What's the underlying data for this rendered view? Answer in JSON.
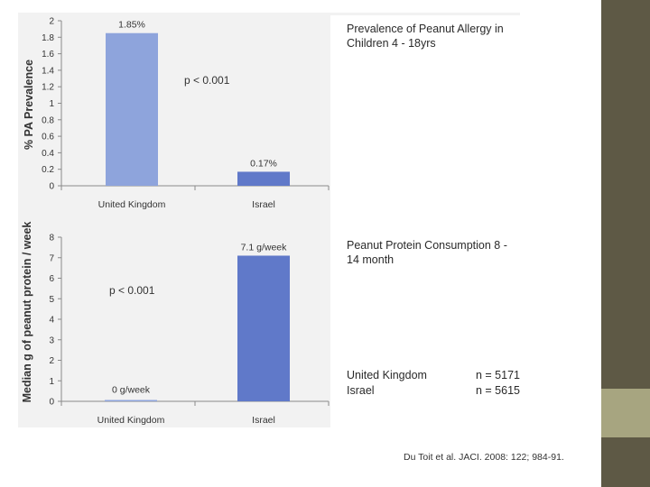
{
  "chart_data": [
    {
      "type": "bar",
      "categories": [
        "United Kingdom",
        "Israel"
      ],
      "values": [
        1.85,
        0.17
      ],
      "data_labels": [
        "1.85%",
        "0.17%"
      ],
      "ylabel": "% PA Prevalence",
      "yticks": [
        "0",
        "0.2",
        "0.4",
        "0.6",
        "0.8",
        "1",
        "1.2",
        "1.4",
        "1.6",
        "1.8",
        "2"
      ],
      "ylim": [
        0,
        2
      ],
      "annotation": "p < 0.001",
      "colors": [
        "#8ea4dc",
        "#6079c9"
      ]
    },
    {
      "type": "bar",
      "categories": [
        "United Kingdom",
        "Israel"
      ],
      "values": [
        0,
        7.1
      ],
      "data_labels": [
        "0 g/week",
        "7.1 g/week"
      ],
      "ylabel": "Median g of peanut protein / week",
      "yticks": [
        "0",
        "1",
        "2",
        "3",
        "4",
        "5",
        "6",
        "7",
        "8"
      ],
      "ylim": [
        0,
        8
      ],
      "annotation": "p < 0.001",
      "colors": [
        "#8ea4dc",
        "#6079c9"
      ]
    }
  ],
  "captions": {
    "top": "Prevalence of Peanut Allergy in Children  4 - 18yrs",
    "bottom": "Peanut Protein Consumption  8 - 14 month"
  },
  "legend": [
    {
      "label": "United Kingdom",
      "n": "n = 5171"
    },
    {
      "label": "Israel",
      "n": "n = 5615"
    }
  ],
  "citation": "Du Toit et al. JACI. 2008: 122; 984-91.",
  "colors": {
    "band": "#5e5945",
    "accent": "#a7a580"
  }
}
